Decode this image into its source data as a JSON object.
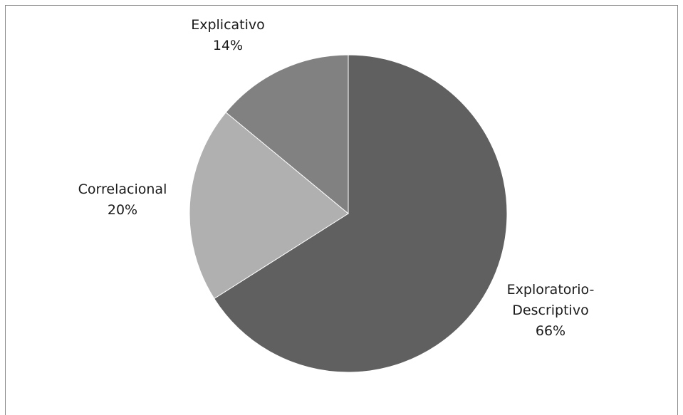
{
  "chart_data": {
    "type": "pie",
    "start_angle_deg": 0,
    "direction": "clockwise",
    "slices": [
      {
        "label_lines": [
          "Exploratorio-",
          "Descriptivo"
        ],
        "percent_label": "66%",
        "value": 66,
        "color": "#606060"
      },
      {
        "label_lines": [
          "Correlacional"
        ],
        "percent_label": "20%",
        "value": 20,
        "color": "#b0b0b0"
      },
      {
        "label_lines": [
          "Explicativo"
        ],
        "percent_label": "14%",
        "value": 14,
        "color": "#818181"
      }
    ],
    "legend": "none"
  }
}
